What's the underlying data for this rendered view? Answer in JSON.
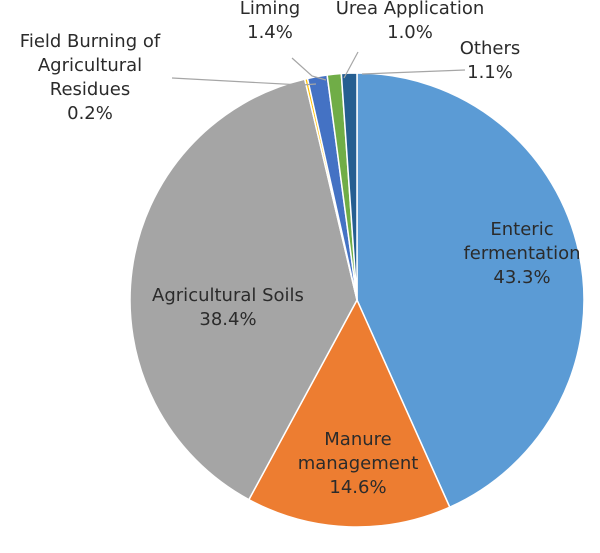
{
  "chart_data": {
    "type": "pie",
    "title": "",
    "slices": [
      {
        "name": "Enteric fermentation",
        "label_lines": [
          "Enteric",
          "fermentation"
        ],
        "value": 43.3,
        "value_label": "43.3%",
        "color": "#5b9bd5"
      },
      {
        "name": "Manure management",
        "label_lines": [
          "Manure",
          "management"
        ],
        "value": 14.6,
        "value_label": "14.6%",
        "color": "#ed7d31"
      },
      {
        "name": "Agricultural Soils",
        "label_lines": [
          "Agricultural Soils"
        ],
        "value": 38.4,
        "value_label": "38.4%",
        "color": "#a5a5a5"
      },
      {
        "name": "Field Burning of Agricultural Residues",
        "label_lines": [
          "Field Burning of",
          "Agricultural",
          "Residues"
        ],
        "value": 0.2,
        "value_label": "0.2%",
        "color": "#ffc000"
      },
      {
        "name": "Liming",
        "label_lines": [
          "Liming"
        ],
        "value": 1.4,
        "value_label": "1.4%",
        "color": "#4472c4"
      },
      {
        "name": "Urea Application",
        "label_lines": [
          "Urea Application"
        ],
        "value": 1.0,
        "value_label": "1.0%",
        "color": "#70ad47"
      },
      {
        "name": "Others",
        "label_lines": [
          "Others"
        ],
        "value": 1.1,
        "value_label": "1.1%",
        "color": "#255e91"
      }
    ],
    "start_angle_deg": 0,
    "direction": "clockwise"
  }
}
